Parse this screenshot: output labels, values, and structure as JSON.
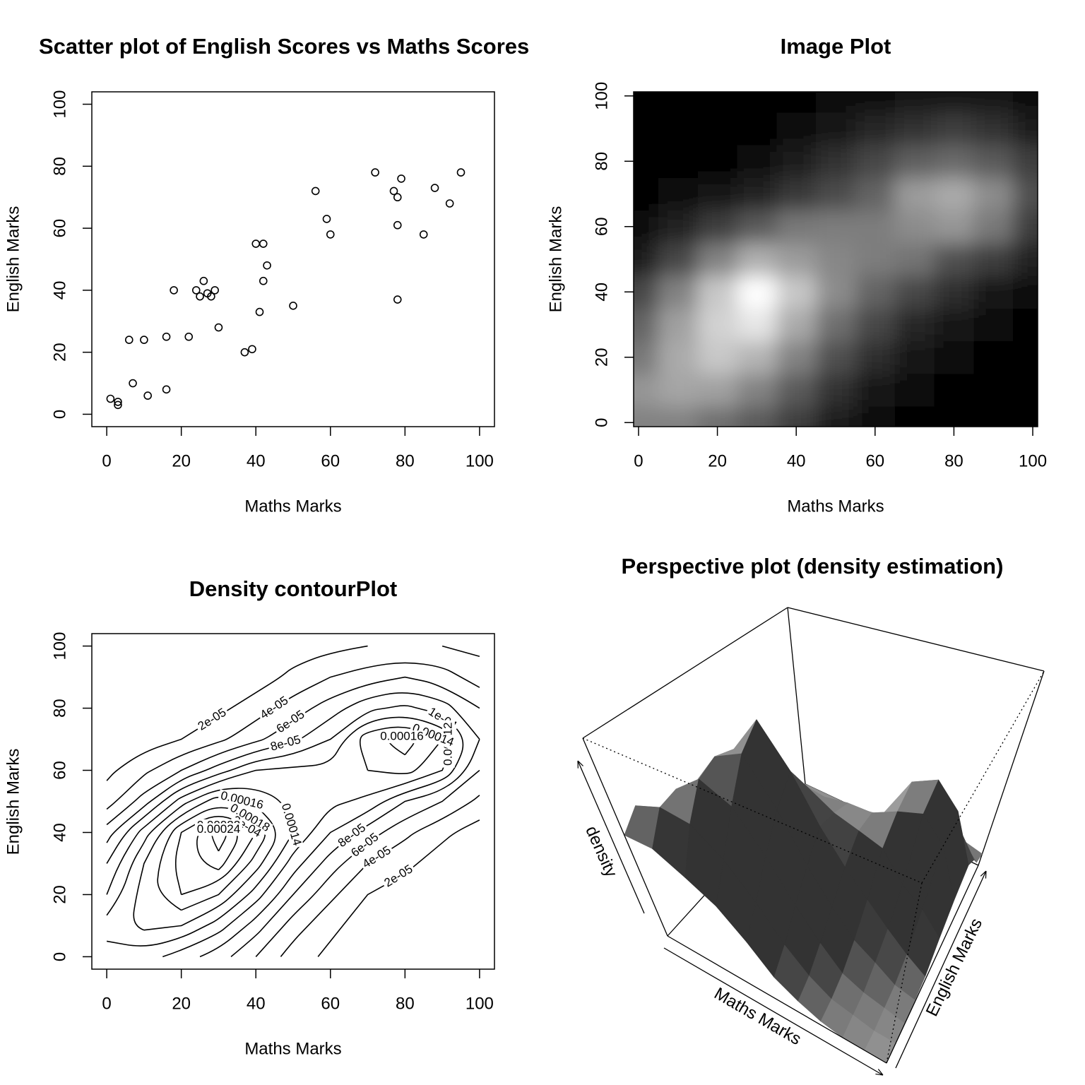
{
  "chart_data": [
    {
      "type": "scatter",
      "title": "Scatter plot of English Scores vs Maths Scores",
      "xlabel": "Maths Marks",
      "ylabel": "English Marks",
      "x": [
        1,
        3,
        3,
        6,
        7,
        10,
        11,
        16,
        16,
        18,
        22,
        24,
        25,
        26,
        27,
        28,
        29,
        30,
        37,
        39,
        40,
        42,
        41,
        43,
        42,
        50,
        56,
        59,
        60,
        72,
        77,
        78,
        79,
        78,
        78,
        85,
        88,
        92,
        95
      ],
      "y": [
        5,
        4,
        3,
        24,
        10,
        24,
        6,
        25,
        8,
        40,
        25,
        40,
        38,
        43,
        39,
        38,
        40,
        28,
        20,
        21,
        55,
        55,
        33,
        48,
        43,
        35,
        72,
        63,
        58,
        78,
        72,
        70,
        76,
        61,
        37,
        58,
        73,
        68,
        78
      ],
      "color": "#000000",
      "xlim": [
        -4,
        104
      ],
      "ylim": [
        -4,
        104
      ],
      "xticks": [
        0,
        20,
        40,
        60,
        80,
        100
      ],
      "yticks": [
        0,
        20,
        40,
        60,
        80,
        100
      ]
    },
    {
      "type": "image",
      "title": "Image Plot",
      "xlabel": "Maths Marks",
      "ylabel": "English Marks",
      "x": [
        0,
        10,
        20,
        30,
        40,
        50,
        60,
        70,
        80,
        90,
        100
      ],
      "y": [
        0,
        10,
        20,
        30,
        40,
        50,
        60,
        70,
        80,
        90,
        100
      ],
      "z": [
        [
          0.00013,
          0.00013,
          0.00011,
          9e-05,
          6e-05,
          3e-05,
          1.5e-05,
          5e-06,
          0,
          0,
          0
        ],
        [
          0.00015,
          0.000165,
          0.00016,
          0.00013,
          9e-05,
          5e-05,
          2.5e-05,
          1e-05,
          5e-06,
          0,
          0
        ],
        [
          0.00012,
          0.00017,
          0.0002,
          0.00018,
          0.00013,
          8e-05,
          4.5e-05,
          2e-05,
          1e-05,
          5e-06,
          0
        ],
        [
          0.0001,
          0.00016,
          0.00021,
          0.00023,
          0.00017,
          0.00011,
          7e-05,
          4e-05,
          2.5e-05,
          1e-05,
          5e-06
        ],
        [
          7e-05,
          0.00013,
          0.0002,
          0.000255,
          0.0002,
          0.00014,
          0.0001,
          7e-05,
          4.5e-05,
          2.5e-05,
          1e-05
        ],
        [
          3e-05,
          7e-05,
          0.00013,
          0.000175,
          0.000155,
          0.000135,
          0.000125,
          0.000115,
          8e-05,
          6e-05,
          3.5e-05
        ],
        [
          1.5e-05,
          3.5e-05,
          6e-05,
          9e-05,
          0.00012,
          0.000125,
          0.000125,
          0.00014,
          0.00015,
          0.00012,
          6e-05
        ],
        [
          5e-06,
          1e-05,
          2e-05,
          3.5e-05,
          5.5e-05,
          7.5e-05,
          0.0001,
          0.000155,
          0.00017,
          0.00014,
          8e-05
        ],
        [
          0,
          0,
          5e-06,
          1.5e-05,
          3e-05,
          5e-05,
          7e-05,
          9.5e-05,
          0.000105,
          9e-05,
          6e-05
        ],
        [
          0,
          0,
          0,
          5e-06,
          1e-05,
          2.5e-05,
          4e-05,
          5e-05,
          6e-05,
          5e-05,
          3e-05
        ],
        [
          0,
          0,
          0,
          0,
          5e-06,
          1e-05,
          1.5e-05,
          2e-05,
          2e-05,
          2e-05,
          1.5e-05
        ]
      ],
      "colors": [
        "#000000",
        "#ffffff"
      ],
      "xlim": [
        -1.25,
        101.25
      ],
      "ylim": [
        -1.25,
        101.25
      ],
      "xticks": [
        0,
        20,
        40,
        60,
        80,
        100
      ],
      "yticks": [
        0,
        20,
        40,
        60,
        80,
        100
      ]
    },
    {
      "type": "contour",
      "title": "Density contourPlot",
      "xlabel": "Maths Marks",
      "ylabel": "English Marks",
      "x": [
        0,
        10,
        20,
        30,
        40,
        50,
        60,
        70,
        80,
        90,
        100
      ],
      "y": [
        0,
        10,
        20,
        30,
        40,
        50,
        60,
        70,
        80,
        90,
        100
      ],
      "z": [
        [
          0.00013,
          0.00013,
          0.00011,
          9e-05,
          6e-05,
          3e-05,
          1.5e-05,
          5e-06,
          0,
          0,
          0
        ],
        [
          0.00015,
          0.000165,
          0.00016,
          0.00013,
          9e-05,
          5e-05,
          2.5e-05,
          1e-05,
          5e-06,
          0,
          0
        ],
        [
          0.00012,
          0.00017,
          0.0002,
          0.00018,
          0.00013,
          8e-05,
          4.5e-05,
          2e-05,
          1e-05,
          5e-06,
          0
        ],
        [
          0.0001,
          0.00016,
          0.00021,
          0.00023,
          0.00017,
          0.00011,
          7e-05,
          4e-05,
          2.5e-05,
          1e-05,
          5e-06
        ],
        [
          7e-05,
          0.00013,
          0.0002,
          0.000255,
          0.0002,
          0.00014,
          0.0001,
          7e-05,
          4.5e-05,
          2.5e-05,
          1e-05
        ],
        [
          3e-05,
          7e-05,
          0.00013,
          0.000175,
          0.000155,
          0.000135,
          0.000125,
          0.000115,
          8e-05,
          6e-05,
          3.5e-05
        ],
        [
          1.5e-05,
          3.5e-05,
          6e-05,
          9e-05,
          0.00012,
          0.000125,
          0.000125,
          0.00014,
          0.00015,
          0.00012,
          6e-05
        ],
        [
          5e-06,
          1e-05,
          2e-05,
          3.5e-05,
          5.5e-05,
          7.5e-05,
          0.0001,
          0.000155,
          0.00017,
          0.00014,
          8e-05
        ],
        [
          0,
          0,
          5e-06,
          1.5e-05,
          3e-05,
          5e-05,
          7e-05,
          9.5e-05,
          0.000105,
          9e-05,
          6e-05
        ],
        [
          0,
          0,
          0,
          5e-06,
          1e-05,
          2.5e-05,
          4e-05,
          5e-05,
          6e-05,
          5e-05,
          3e-05
        ],
        [
          0,
          0,
          0,
          0,
          5e-06,
          1e-05,
          1.5e-05,
          2e-05,
          2e-05,
          2e-05,
          1.5e-05
        ]
      ],
      "levels": [
        {
          "value": 2e-05,
          "label": "2e-05"
        },
        {
          "value": 4e-05,
          "label": "4e-05"
        },
        {
          "value": 6e-05,
          "label": "6e-05"
        },
        {
          "value": 8e-05,
          "label": "8e-05"
        },
        {
          "value": 0.0001,
          "label": "1e-04"
        },
        0.00012,
        0.00014,
        0.00016,
        0.00018,
        {
          "value": 0.0002,
          "label": "2e-04"
        },
        0.00022,
        0.00024
      ],
      "color": "#000000",
      "xlim": [
        -4,
        104
      ],
      "ylim": [
        -4,
        104
      ],
      "xticks": [
        0,
        20,
        40,
        60,
        80,
        100
      ],
      "yticks": [
        0,
        20,
        40,
        60,
        80,
        100
      ]
    },
    {
      "type": "surface",
      "title": "Perspective plot (density estimation)",
      "xlabel": "Maths Marks",
      "ylabel": "English Marks",
      "zlabel": "density",
      "x": [
        0,
        10,
        20,
        30,
        40,
        50,
        60,
        70,
        80,
        90,
        100
      ],
      "y": [
        0,
        10,
        20,
        30,
        40,
        50,
        60,
        70,
        80,
        90,
        100
      ],
      "z": [
        [
          0.00013,
          0.00013,
          0.00011,
          9e-05,
          6e-05,
          3e-05,
          1.5e-05,
          5e-06,
          0,
          0,
          0
        ],
        [
          0.00015,
          0.000165,
          0.00016,
          0.00013,
          9e-05,
          5e-05,
          2.5e-05,
          1e-05,
          5e-06,
          0,
          0
        ],
        [
          0.00012,
          0.00017,
          0.0002,
          0.00018,
          0.00013,
          8e-05,
          4.5e-05,
          2e-05,
          1e-05,
          5e-06,
          0
        ],
        [
          0.0001,
          0.00016,
          0.00021,
          0.00023,
          0.00017,
          0.00011,
          7e-05,
          4e-05,
          2.5e-05,
          1e-05,
          5e-06
        ],
        [
          7e-05,
          0.00013,
          0.0002,
          0.000255,
          0.0002,
          0.00014,
          0.0001,
          7e-05,
          4.5e-05,
          2.5e-05,
          1e-05
        ],
        [
          3e-05,
          7e-05,
          0.00013,
          0.000175,
          0.000155,
          0.000135,
          0.000125,
          0.000115,
          8e-05,
          6e-05,
          3.5e-05
        ],
        [
          1.5e-05,
          3.5e-05,
          6e-05,
          9e-05,
          0.00012,
          0.000125,
          0.000125,
          0.00014,
          0.00015,
          0.00012,
          6e-05
        ],
        [
          5e-06,
          1e-05,
          2e-05,
          3.5e-05,
          5.5e-05,
          7.5e-05,
          0.0001,
          0.000155,
          0.00017,
          0.00014,
          8e-05
        ],
        [
          0,
          0,
          5e-06,
          1.5e-05,
          3e-05,
          5e-05,
          7e-05,
          9.5e-05,
          0.000105,
          9e-05,
          6e-05
        ],
        [
          0,
          0,
          0,
          5e-06,
          1e-05,
          2.5e-05,
          4e-05,
          5e-05,
          6e-05,
          5e-05,
          3e-05
        ],
        [
          0,
          0,
          0,
          0,
          5e-06,
          1e-05,
          1.5e-05,
          2e-05,
          2e-05,
          2e-05,
          1.5e-05
        ]
      ],
      "color": "#ffffff"
    }
  ]
}
